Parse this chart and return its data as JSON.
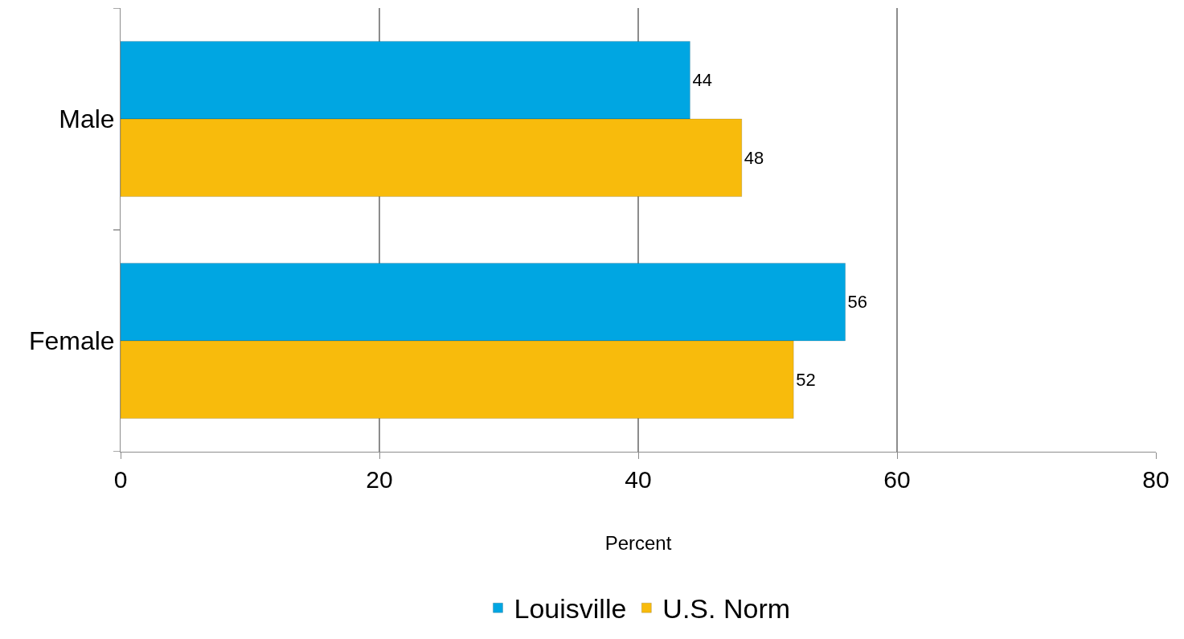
{
  "chart_data": {
    "type": "bar",
    "orientation": "horizontal",
    "xlabel": "Percent",
    "categories": [
      "Male",
      "Female"
    ],
    "series": [
      {
        "name": "Louisville",
        "color": "#00a6e2",
        "values": [
          44,
          56
        ]
      },
      {
        "name": "U.S. Norm",
        "color": "#f8bb0c",
        "values": [
          48,
          52
        ]
      }
    ],
    "xlim": [
      0,
      80
    ],
    "xticks": [
      0,
      20,
      40,
      60,
      80
    ],
    "grid": "x",
    "legend": "bottom",
    "data_labels": true
  }
}
